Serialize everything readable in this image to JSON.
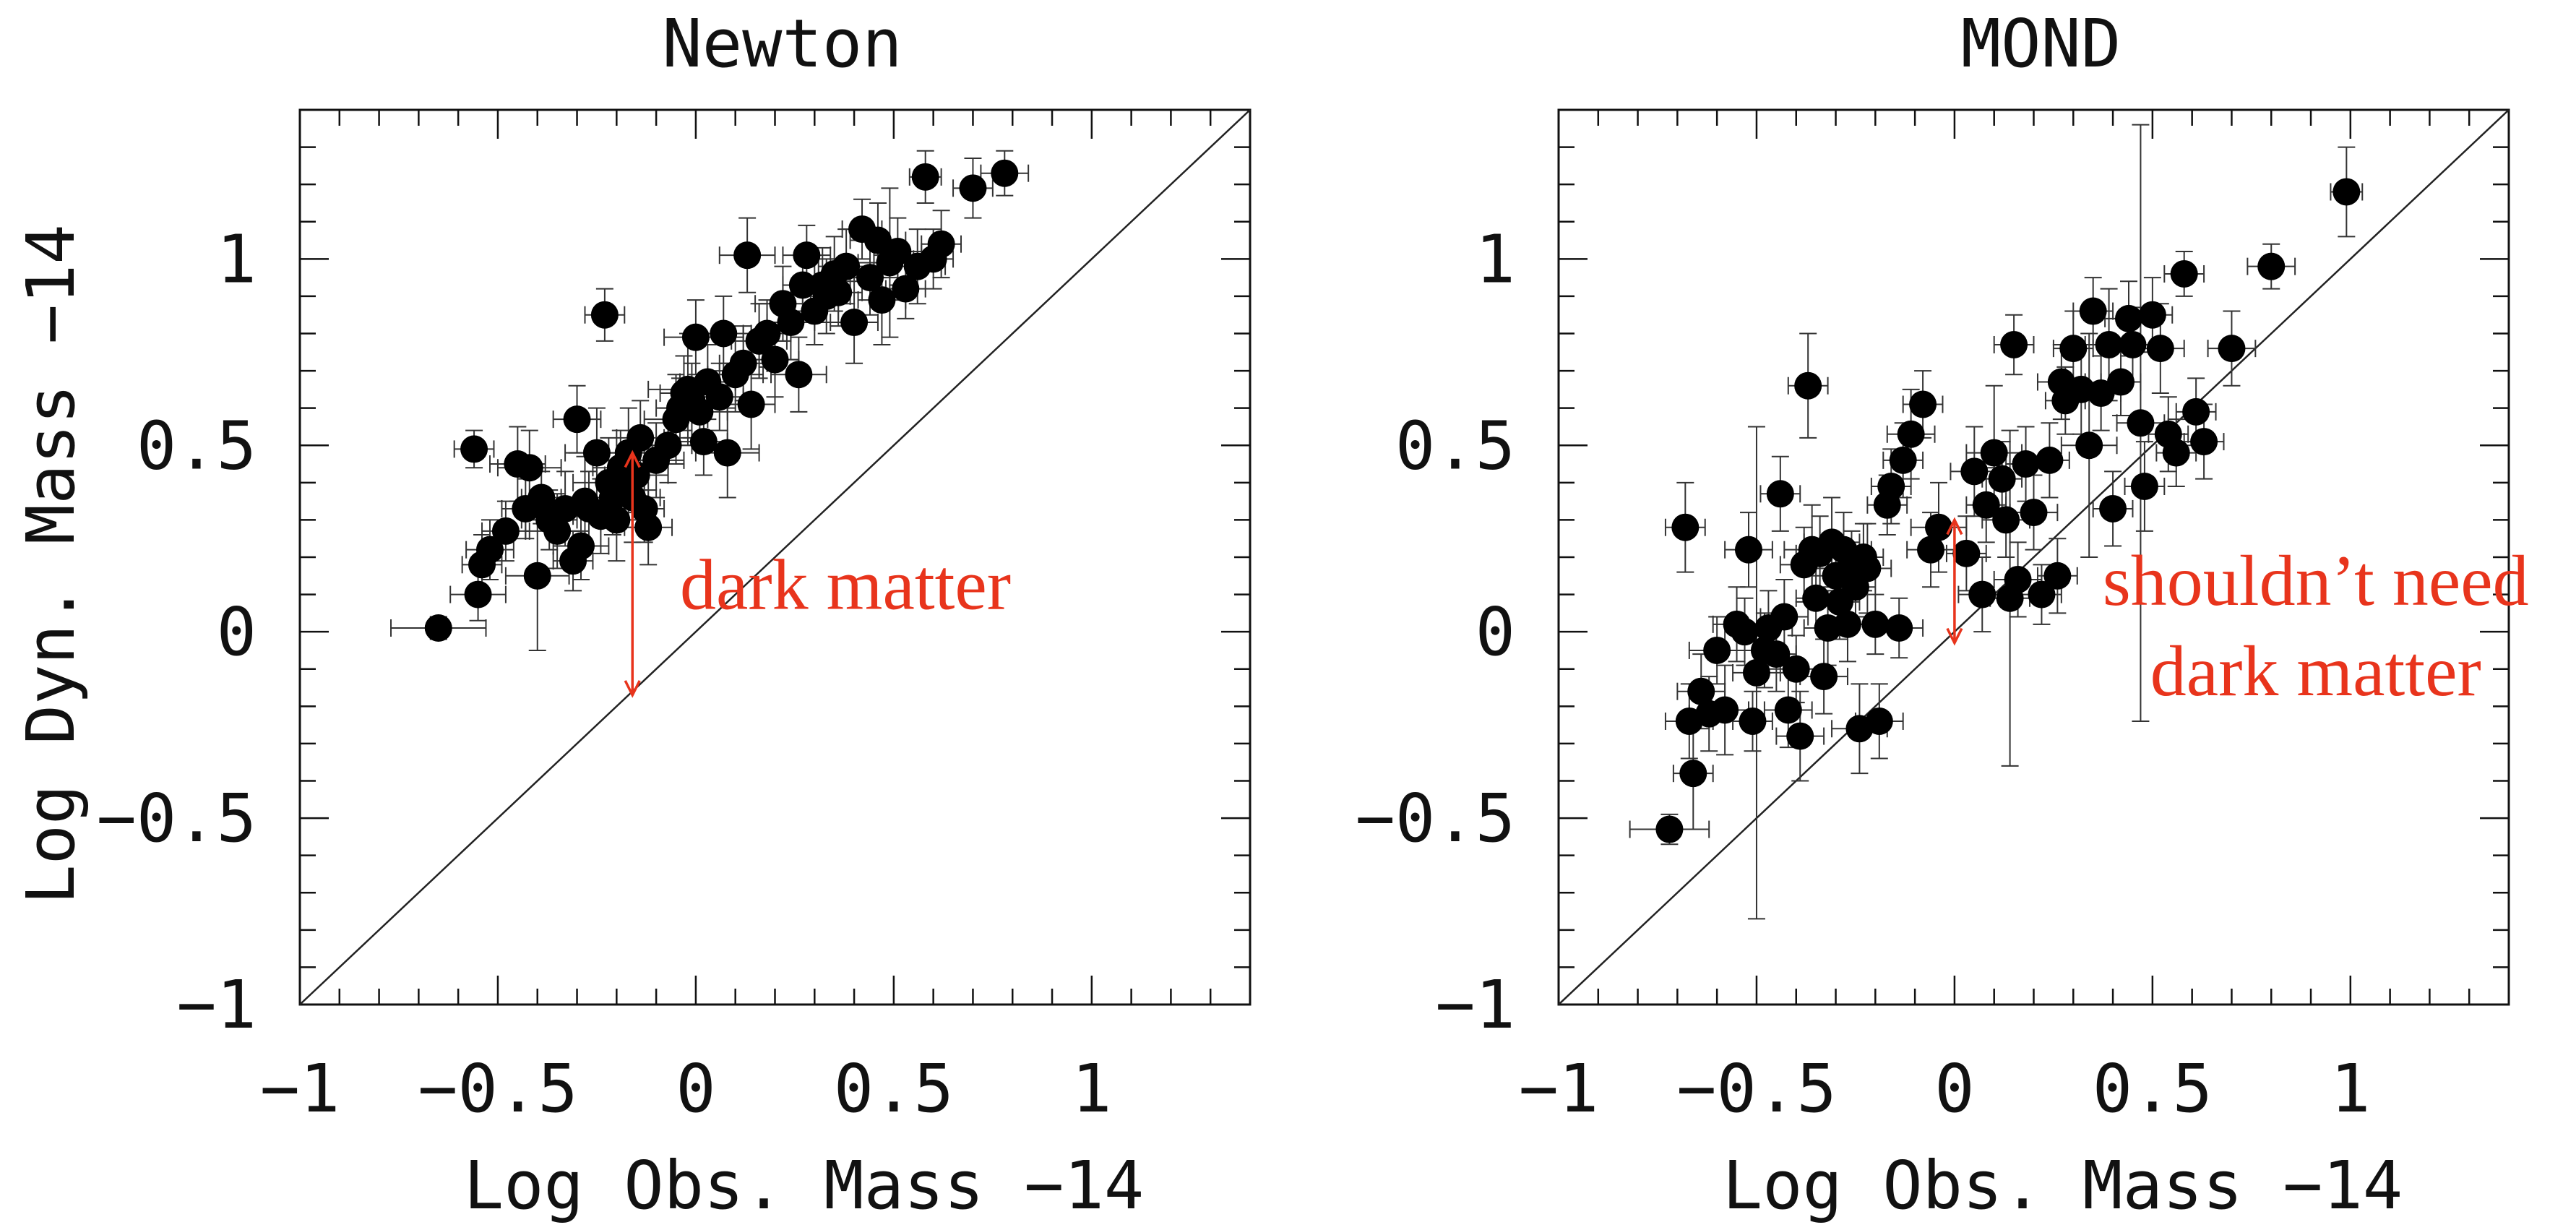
{
  "chart_data": [
    {
      "type": "scatter",
      "title": "Newton",
      "xlabel": "Log Obs. Mass −14",
      "ylabel": "Log Dyn. Mass −14",
      "xlim": [
        -1,
        1.4
      ],
      "ylim": [
        -1,
        1.4
      ],
      "x_ticks": [
        -1,
        -0.5,
        0,
        0.5,
        1
      ],
      "y_ticks": [
        -1,
        -0.5,
        0,
        0.5,
        1
      ],
      "x_tick_labels": [
        "−1",
        "−0.5",
        "0",
        "0.5",
        "1"
      ],
      "y_tick_labels": [
        "−1",
        "−0.5",
        "0",
        "0.5",
        "1"
      ],
      "reference_line": "y = x",
      "annotation": {
        "text": "dark matter",
        "arrow_x": -0.16,
        "arrow_y_from": -0.17,
        "arrow_y_to": 0.48,
        "text_x": -0.04,
        "text_y": 0.12,
        "color": "#e8341c"
      },
      "series": [
        {
          "points": [
            [
              -0.65,
              0.01,
              0.12,
              0.03
            ],
            [
              -0.56,
              0.49,
              0.05,
              0.05
            ],
            [
              -0.55,
              0.1,
              0.07,
              0.07
            ],
            [
              -0.54,
              0.18,
              0.05,
              0.08
            ],
            [
              -0.52,
              0.22,
              0.06,
              0.08
            ],
            [
              -0.48,
              0.27,
              0.06,
              0.08
            ],
            [
              -0.45,
              0.45,
              0.07,
              0.1
            ],
            [
              -0.43,
              0.33,
              0.06,
              0.08
            ],
            [
              -0.42,
              0.44,
              0.08,
              0.1
            ],
            [
              -0.4,
              0.15,
              0.08,
              0.2
            ],
            [
              -0.39,
              0.36,
              0.05,
              0.07
            ],
            [
              -0.37,
              0.3,
              0.07,
              0.08
            ],
            [
              -0.35,
              0.27,
              0.08,
              0.1
            ],
            [
              -0.33,
              0.33,
              0.08,
              0.1
            ],
            [
              -0.31,
              0.19,
              0.05,
              0.08
            ],
            [
              -0.3,
              0.57,
              0.06,
              0.09
            ],
            [
              -0.29,
              0.23,
              0.07,
              0.09
            ],
            [
              -0.28,
              0.35,
              0.1,
              0.12
            ],
            [
              -0.27,
              0.33,
              0.08,
              0.1
            ],
            [
              -0.25,
              0.48,
              0.08,
              0.12
            ],
            [
              -0.24,
              0.31,
              0.07,
              0.1
            ],
            [
              -0.23,
              0.85,
              0.05,
              0.07
            ],
            [
              -0.22,
              0.4,
              0.09,
              0.12
            ],
            [
              -0.21,
              0.36,
              0.07,
              0.1
            ],
            [
              -0.2,
              0.3,
              0.08,
              0.11
            ],
            [
              -0.19,
              0.44,
              0.07,
              0.1
            ],
            [
              -0.18,
              0.38,
              0.06,
              0.1
            ],
            [
              -0.17,
              0.48,
              0.06,
              0.12
            ],
            [
              -0.16,
              0.36,
              0.07,
              0.12
            ],
            [
              -0.15,
              0.42,
              0.08,
              0.1
            ],
            [
              -0.14,
              0.52,
              0.06,
              0.1
            ],
            [
              -0.13,
              0.33,
              0.05,
              0.09
            ],
            [
              -0.12,
              0.28,
              0.06,
              0.1
            ],
            [
              -0.1,
              0.46,
              0.07,
              0.1
            ],
            [
              -0.07,
              0.5,
              0.06,
              0.1
            ],
            [
              -0.05,
              0.57,
              0.08,
              0.12
            ],
            [
              -0.03,
              0.64,
              0.06,
              0.1
            ],
            [
              -0.01,
              0.62,
              0.05,
              0.1
            ],
            [
              0.01,
              0.59,
              0.07,
              0.09
            ],
            [
              0.02,
              0.51,
              0.06,
              0.09
            ],
            [
              -0.04,
              0.6,
              0.06,
              0.08
            ],
            [
              -0.02,
              0.65,
              0.1,
              0.15
            ],
            [
              0.0,
              0.79,
              0.08,
              0.1
            ],
            [
              0.03,
              0.67,
              0.07,
              0.1
            ],
            [
              0.06,
              0.63,
              0.06,
              0.09
            ],
            [
              0.07,
              0.8,
              0.07,
              0.1
            ],
            [
              0.08,
              0.48,
              0.08,
              0.12
            ],
            [
              0.1,
              0.69,
              0.07,
              0.1
            ],
            [
              0.12,
              0.72,
              0.06,
              0.1
            ],
            [
              0.13,
              1.01,
              0.07,
              0.1
            ],
            [
              0.14,
              0.61,
              0.06,
              0.12
            ],
            [
              0.16,
              0.78,
              0.07,
              0.1
            ],
            [
              0.18,
              0.8,
              0.06,
              0.09
            ],
            [
              0.2,
              0.73,
              0.06,
              0.1
            ],
            [
              0.22,
              0.88,
              0.07,
              0.1
            ],
            [
              0.24,
              0.83,
              0.06,
              0.1
            ],
            [
              0.26,
              0.69,
              0.07,
              0.1
            ],
            [
              0.27,
              0.93,
              0.05,
              0.08
            ],
            [
              0.28,
              1.01,
              0.06,
              0.08
            ],
            [
              0.3,
              0.86,
              0.06,
              0.09
            ],
            [
              0.32,
              0.93,
              0.07,
              0.1
            ],
            [
              0.33,
              0.9,
              0.06,
              0.1
            ],
            [
              0.35,
              0.96,
              0.05,
              0.1
            ],
            [
              0.36,
              0.91,
              0.06,
              0.09
            ],
            [
              0.38,
              0.98,
              0.07,
              0.1
            ],
            [
              0.4,
              0.83,
              0.06,
              0.11
            ],
            [
              0.42,
              1.08,
              0.05,
              0.08
            ],
            [
              0.44,
              0.95,
              0.07,
              0.1
            ],
            [
              0.46,
              1.05,
              0.07,
              0.1
            ],
            [
              0.47,
              0.89,
              0.06,
              0.12
            ],
            [
              0.49,
              0.99,
              0.08,
              0.2
            ],
            [
              0.51,
              1.02,
              0.06,
              0.09
            ],
            [
              0.53,
              0.92,
              0.05,
              0.08
            ],
            [
              0.56,
              0.98,
              0.07,
              0.1
            ],
            [
              0.58,
              1.22,
              0.04,
              0.07
            ],
            [
              0.6,
              1.0,
              0.05,
              0.08
            ],
            [
              0.62,
              1.04,
              0.05,
              0.09
            ],
            [
              0.7,
              1.19,
              0.05,
              0.08
            ],
            [
              0.78,
              1.23,
              0.06,
              0.06
            ]
          ]
        }
      ]
    },
    {
      "type": "scatter",
      "title": "MOND",
      "xlabel": "Log Obs. Mass −14",
      "ylabel": "",
      "xlim": [
        -1,
        1.4
      ],
      "ylim": [
        -1,
        1.4
      ],
      "x_ticks": [
        -1,
        -0.5,
        0,
        0.5,
        1
      ],
      "y_ticks": [
        -1,
        -0.5,
        0,
        0.5,
        1
      ],
      "x_tick_labels": [
        "−1",
        "−0.5",
        "0",
        "0.5",
        "1"
      ],
      "y_tick_labels": [
        "−1",
        "−0.5",
        "0",
        "0.5",
        "1"
      ],
      "reference_line": "y = x",
      "annotation": {
        "text_line1": "shouldn’t need",
        "text_line2": "dark matter",
        "arrow_x": 0.0,
        "arrow_y_from": -0.03,
        "arrow_y_to": 0.3,
        "text_x": 0.31,
        "text_y": 0.13,
        "color": "#e8341c"
      },
      "series": [
        {
          "points": [
            [
              -0.72,
              -0.53,
              0.1,
              0.04
            ],
            [
              -0.68,
              0.28,
              0.05,
              0.12
            ],
            [
              -0.67,
              -0.24,
              0.06,
              0.1
            ],
            [
              -0.66,
              -0.38,
              0.05,
              0.15
            ],
            [
              -0.64,
              -0.16,
              0.06,
              0.1
            ],
            [
              -0.62,
              -0.22,
              0.05,
              0.1
            ],
            [
              -0.6,
              -0.05,
              0.07,
              0.09
            ],
            [
              -0.58,
              -0.21,
              0.06,
              0.12
            ],
            [
              -0.55,
              0.02,
              0.06,
              0.1
            ],
            [
              -0.53,
              0.0,
              0.05,
              0.09
            ],
            [
              -0.52,
              0.22,
              0.06,
              0.1
            ],
            [
              -0.51,
              -0.24,
              0.05,
              0.08
            ],
            [
              -0.5,
              -0.11,
              0.06,
              0.66
            ],
            [
              -0.48,
              -0.05,
              0.05,
              0.1
            ],
            [
              -0.47,
              0.01,
              0.06,
              0.1
            ],
            [
              -0.45,
              -0.06,
              0.05,
              0.1
            ],
            [
              -0.44,
              0.37,
              0.05,
              0.1
            ],
            [
              -0.43,
              0.04,
              0.06,
              0.1
            ],
            [
              -0.42,
              -0.21,
              0.06,
              0.1
            ],
            [
              -0.4,
              -0.1,
              0.07,
              0.09
            ],
            [
              -0.39,
              -0.28,
              0.06,
              0.12
            ],
            [
              -0.38,
              0.18,
              0.06,
              0.1
            ],
            [
              -0.37,
              0.66,
              0.05,
              0.14
            ],
            [
              -0.36,
              0.22,
              0.07,
              0.12
            ],
            [
              -0.35,
              0.09,
              0.05,
              0.08
            ],
            [
              -0.34,
              0.21,
              0.06,
              0.1
            ],
            [
              -0.33,
              -0.12,
              0.06,
              0.1
            ],
            [
              -0.32,
              0.01,
              0.06,
              0.1
            ],
            [
              -0.31,
              0.24,
              0.07,
              0.12
            ],
            [
              -0.3,
              0.15,
              0.06,
              0.09
            ],
            [
              -0.29,
              0.08,
              0.05,
              0.1
            ],
            [
              -0.28,
              0.22,
              0.07,
              0.1
            ],
            [
              -0.27,
              0.02,
              0.05,
              0.1
            ],
            [
              -0.26,
              0.18,
              0.06,
              0.09
            ],
            [
              -0.25,
              0.12,
              0.05,
              0.08
            ],
            [
              -0.24,
              -0.26,
              0.07,
              0.12
            ],
            [
              -0.23,
              0.2,
              0.05,
              0.09
            ],
            [
              -0.22,
              0.17,
              0.06,
              0.12
            ],
            [
              -0.2,
              0.02,
              0.05,
              0.08
            ],
            [
              -0.19,
              -0.24,
              0.06,
              0.1
            ],
            [
              -0.17,
              0.34,
              0.05,
              0.08
            ],
            [
              -0.16,
              0.39,
              0.05,
              0.1
            ],
            [
              -0.14,
              0.01,
              0.06,
              0.08
            ],
            [
              -0.13,
              0.46,
              0.05,
              0.1
            ],
            [
              -0.11,
              0.53,
              0.06,
              0.12
            ],
            [
              -0.08,
              0.61,
              0.05,
              0.09
            ],
            [
              -0.06,
              0.22,
              0.06,
              0.1
            ],
            [
              -0.04,
              0.28,
              0.07,
              0.12
            ],
            [
              0.03,
              0.21,
              0.05,
              0.1
            ],
            [
              0.05,
              0.43,
              0.06,
              0.12
            ],
            [
              0.07,
              0.1,
              0.06,
              0.1
            ],
            [
              0.08,
              0.34,
              0.05,
              0.1
            ],
            [
              0.1,
              0.48,
              0.07,
              0.18
            ],
            [
              0.12,
              0.41,
              0.05,
              0.1
            ],
            [
              0.13,
              0.3,
              0.06,
              0.1
            ],
            [
              0.14,
              0.09,
              0.05,
              0.45
            ],
            [
              0.15,
              0.77,
              0.05,
              0.08
            ],
            [
              0.16,
              0.14,
              0.06,
              0.1
            ],
            [
              0.18,
              0.45,
              0.05,
              0.1
            ],
            [
              0.2,
              0.32,
              0.06,
              0.1
            ],
            [
              0.22,
              0.1,
              0.05,
              0.08
            ],
            [
              0.24,
              0.46,
              0.05,
              0.1
            ],
            [
              0.26,
              0.15,
              0.05,
              0.1
            ],
            [
              0.27,
              0.67,
              0.06,
              0.1
            ],
            [
              0.28,
              0.62,
              0.05,
              0.09
            ],
            [
              0.3,
              0.76,
              0.05,
              0.1
            ],
            [
              0.32,
              0.65,
              0.06,
              0.12
            ],
            [
              0.34,
              0.5,
              0.07,
              0.3
            ],
            [
              0.35,
              0.86,
              0.05,
              0.09
            ],
            [
              0.37,
              0.64,
              0.05,
              0.1
            ],
            [
              0.39,
              0.77,
              0.06,
              0.15
            ],
            [
              0.4,
              0.33,
              0.05,
              0.1
            ],
            [
              0.42,
              0.67,
              0.05,
              0.09
            ],
            [
              0.44,
              0.84,
              0.06,
              0.1
            ],
            [
              0.45,
              0.77,
              0.05,
              0.1
            ],
            [
              0.47,
              0.56,
              0.06,
              0.8
            ],
            [
              0.48,
              0.39,
              0.05,
              0.12
            ],
            [
              0.5,
              0.85,
              0.05,
              0.1
            ],
            [
              0.52,
              0.76,
              0.06,
              0.12
            ],
            [
              0.54,
              0.53,
              0.05,
              0.1
            ],
            [
              0.56,
              0.48,
              0.05,
              0.09
            ],
            [
              0.58,
              0.96,
              0.05,
              0.06
            ],
            [
              0.61,
              0.59,
              0.05,
              0.09
            ],
            [
              0.63,
              0.51,
              0.05,
              0.1
            ],
            [
              0.7,
              0.76,
              0.06,
              0.1
            ],
            [
              0.8,
              0.98,
              0.06,
              0.06
            ],
            [
              0.99,
              1.18,
              0.04,
              0.12
            ]
          ]
        }
      ]
    }
  ]
}
